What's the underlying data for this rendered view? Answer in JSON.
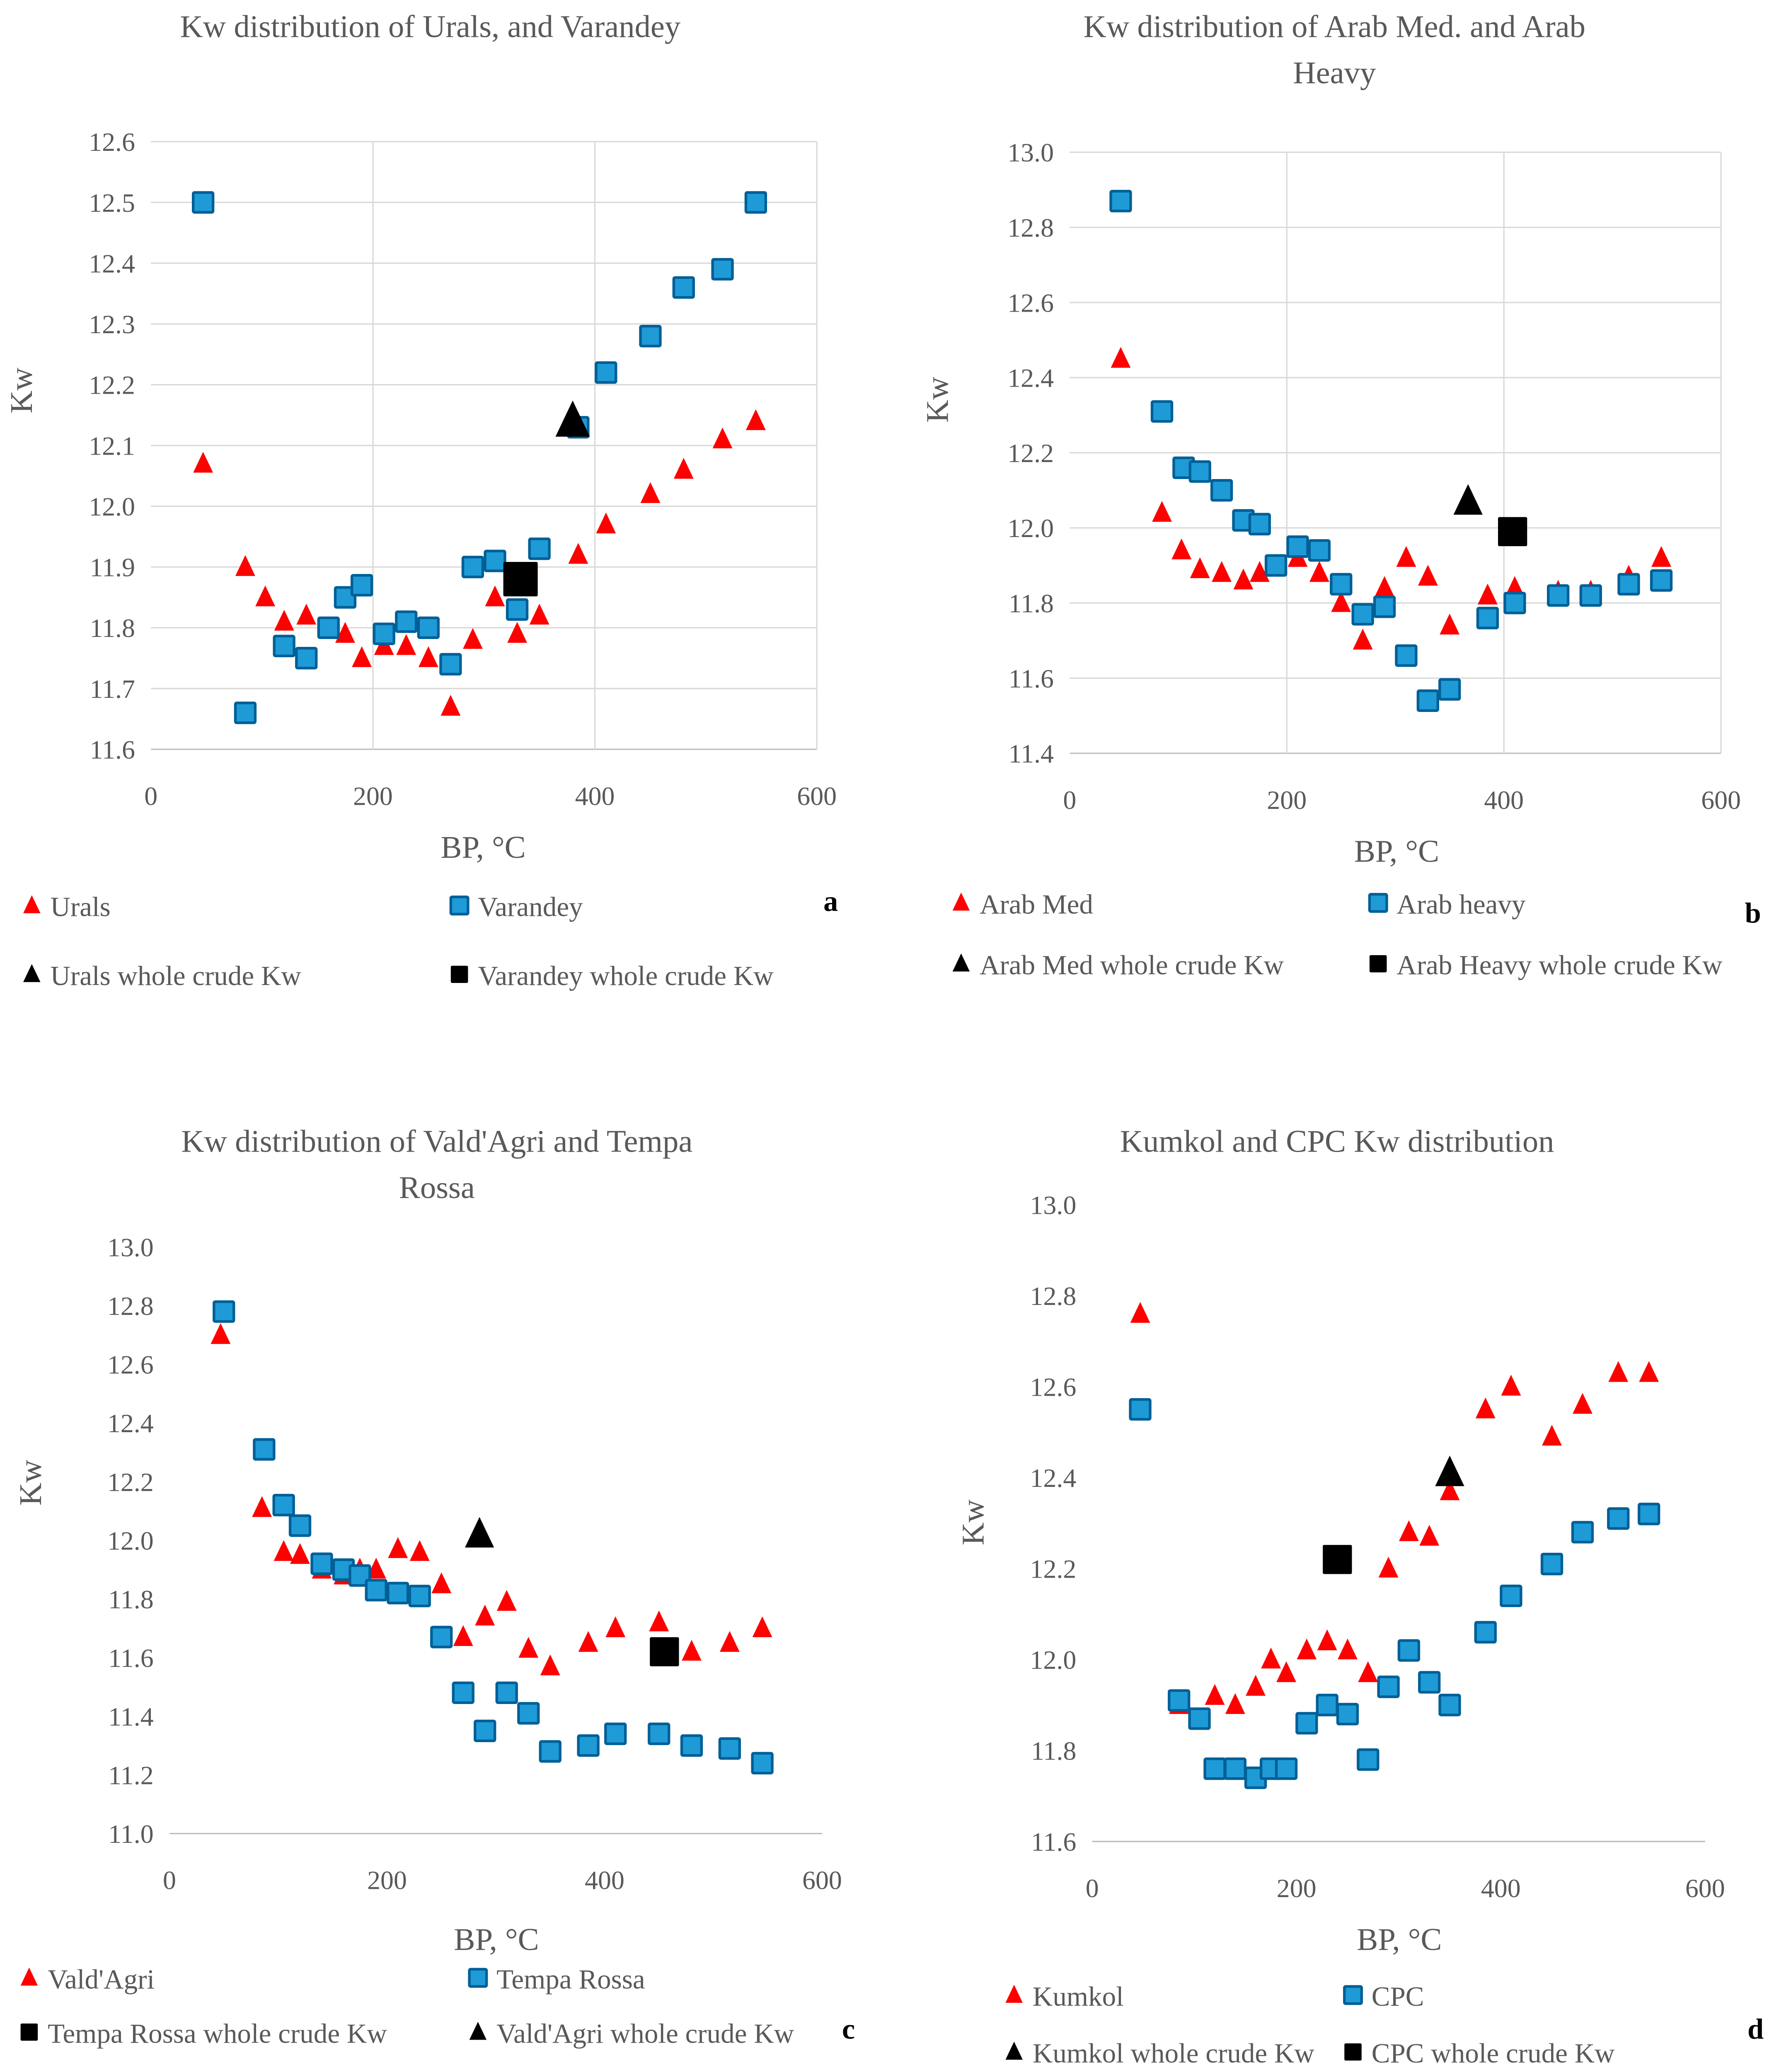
{
  "colors": {
    "triangle": "#ff0000",
    "square_fill": "#1e9bd7",
    "square_stroke": "#005f96",
    "whole": "#000000",
    "grid": "#d9d9d9"
  },
  "chart_data": [
    {
      "type": "scatter",
      "panel": "a",
      "title": [
        "Kw distribution of Urals, and Varandey"
      ],
      "xlabel": "BP, °C",
      "ylabel": "Kw",
      "xlim": [
        0,
        600
      ],
      "ylim": [
        11.6,
        12.6
      ],
      "xticks": [
        0,
        200,
        400,
        600
      ],
      "yticks": [
        "11.6",
        "11.7",
        "11.8",
        "11.9",
        "12.0",
        "12.1",
        "12.2",
        "12.3",
        "12.4",
        "12.5",
        "12.6"
      ],
      "grid": true,
      "legend_position": "bottom",
      "series": [
        {
          "name": "Urals",
          "marker": "triangle",
          "x": [
            47,
            85,
            103,
            120,
            140,
            175,
            190,
            210,
            230,
            250,
            270,
            290,
            310,
            330,
            350,
            385,
            410,
            450,
            480,
            515,
            545
          ],
          "y": [
            12.07,
            11.9,
            11.85,
            11.81,
            11.82,
            11.79,
            11.75,
            11.77,
            11.77,
            11.75,
            11.67,
            11.78,
            11.85,
            11.79,
            11.82,
            11.92,
            11.97,
            12.02,
            12.06,
            12.11,
            12.14
          ]
        },
        {
          "name": "Varandey",
          "marker": "square",
          "x": [
            47,
            85,
            120,
            140,
            160,
            175,
            190,
            210,
            230,
            250,
            270,
            290,
            310,
            330,
            350,
            385,
            410,
            450,
            480,
            515,
            545
          ],
          "y": [
            12.5,
            11.66,
            11.77,
            11.75,
            11.8,
            11.85,
            11.87,
            11.79,
            11.81,
            11.8,
            11.74,
            11.9,
            11.91,
            11.83,
            11.93,
            12.13,
            12.22,
            12.28,
            12.36,
            12.39,
            12.5
          ]
        },
        {
          "name": "Urals whole crude Kw",
          "marker": "triangle-whole",
          "x": [
            380
          ],
          "y": [
            12.14
          ]
        },
        {
          "name": "Varandey whole crude Kw",
          "marker": "square-whole",
          "x": [
            333
          ],
          "y": [
            11.88
          ]
        }
      ]
    },
    {
      "type": "scatter",
      "panel": "b",
      "title": [
        "Kw distribution of Arab Med. and Arab",
        "Heavy"
      ],
      "xlabel": "BP, °C",
      "ylabel": "Kw",
      "xlim": [
        0,
        600
      ],
      "ylim": [
        11.4,
        13.0
      ],
      "xticks": [
        0,
        200,
        400,
        600
      ],
      "yticks": [
        "11.4",
        "11.6",
        "11.8",
        "12.0",
        "12.2",
        "12.4",
        "12.6",
        "12.8",
        "13.0"
      ],
      "grid": true,
      "legend_position": "bottom",
      "series": [
        {
          "name": "Arab Med",
          "marker": "triangle",
          "x": [
            47,
            85,
            103,
            120,
            140,
            160,
            175,
            190,
            210,
            230,
            250,
            270,
            290,
            310,
            330,
            350,
            385,
            410,
            450,
            480,
            515,
            545
          ],
          "y": [
            12.45,
            12.04,
            11.94,
            11.89,
            11.88,
            11.86,
            11.88,
            11.9,
            11.92,
            11.88,
            11.8,
            11.7,
            11.84,
            11.92,
            11.87,
            11.74,
            11.82,
            11.84,
            11.83,
            11.83,
            11.87,
            11.92
          ]
        },
        {
          "name": "Arab heavy",
          "marker": "square",
          "x": [
            47,
            85,
            105,
            120,
            140,
            160,
            175,
            190,
            210,
            230,
            250,
            270,
            290,
            310,
            330,
            350,
            385,
            410,
            450,
            480,
            515,
            545
          ],
          "y": [
            12.87,
            12.31,
            12.16,
            12.15,
            12.1,
            12.02,
            12.01,
            11.9,
            11.95,
            11.94,
            11.85,
            11.77,
            11.79,
            11.66,
            11.54,
            11.57,
            11.76,
            11.8,
            11.82,
            11.82,
            11.85,
            11.86
          ]
        },
        {
          "name": "Arab Med whole crude Kw",
          "marker": "triangle-whole",
          "x": [
            367
          ],
          "y": [
            12.07
          ]
        },
        {
          "name": "Arab Heavy whole crude Kw",
          "marker": "square-whole",
          "x": [
            408
          ],
          "y": [
            11.99
          ]
        }
      ]
    },
    {
      "type": "scatter",
      "panel": "c",
      "title": [
        "Kw distribution of Vald'Agri and Tempa",
        "Rossa"
      ],
      "xlabel": "BP, °C",
      "ylabel": "Kw",
      "xlim": [
        0,
        600
      ],
      "ylim": [
        11.0,
        13.0
      ],
      "xticks": [
        0,
        200,
        400,
        600
      ],
      "yticks": [
        "11.0",
        "11.2",
        "11.4",
        "11.6",
        "11.8",
        "12.0",
        "12.2",
        "12.4",
        "12.6",
        "12.8",
        "13.0"
      ],
      "grid": false,
      "legend_position": "bottom",
      "series": [
        {
          "name": "Vald'Agri",
          "marker": "triangle",
          "x": [
            47,
            85,
            105,
            120,
            140,
            160,
            175,
            190,
            210,
            230,
            250,
            270,
            290,
            310,
            330,
            350,
            385,
            410,
            450,
            480,
            515,
            545
          ],
          "y": [
            12.7,
            12.11,
            11.96,
            11.95,
            11.9,
            11.88,
            11.9,
            11.9,
            11.97,
            11.96,
            11.85,
            11.67,
            11.74,
            11.79,
            11.63,
            11.57,
            11.65,
            11.7,
            11.72,
            11.62,
            11.65,
            11.7
          ]
        },
        {
          "name": "Tempa Rossa",
          "marker": "square",
          "x": [
            50,
            87,
            105,
            120,
            140,
            160,
            175,
            190,
            210,
            230,
            250,
            270,
            290,
            310,
            330,
            350,
            385,
            410,
            450,
            480,
            515,
            545
          ],
          "y": [
            12.78,
            12.31,
            12.12,
            12.05,
            11.92,
            11.9,
            11.88,
            11.83,
            11.82,
            11.81,
            11.67,
            11.48,
            11.35,
            11.48,
            11.41,
            11.28,
            11.3,
            11.34,
            11.34,
            11.3,
            11.29,
            11.24
          ]
        },
        {
          "name": "Tempa Rossa whole crude Kw",
          "marker": "square-whole",
          "x": [
            455
          ],
          "y": [
            11.62
          ]
        },
        {
          "name": "Vald'Agri whole crude Kw",
          "marker": "triangle-whole",
          "x": [
            285
          ],
          "y": [
            12.02
          ]
        }
      ]
    },
    {
      "type": "scatter",
      "panel": "d",
      "title": [
        "Kumkol and CPC Kw distribution"
      ],
      "xlabel": "BP, °C",
      "ylabel": "Kw",
      "xlim": [
        0,
        600
      ],
      "ylim": [
        11.6,
        13.0
      ],
      "xticks": [
        0,
        200,
        400,
        600
      ],
      "yticks": [
        "11.6",
        "11.8",
        "12.0",
        "12.2",
        "12.4",
        "12.6",
        "12.8",
        "13.0"
      ],
      "grid": false,
      "legend_position": "bottom",
      "series": [
        {
          "name": "Kumkol",
          "marker": "triangle",
          "x": [
            47,
            85,
            120,
            140,
            160,
            175,
            190,
            210,
            230,
            250,
            270,
            290,
            310,
            330,
            350,
            385,
            410,
            450,
            480,
            515,
            545
          ],
          "y": [
            12.76,
            11.9,
            11.92,
            11.9,
            11.94,
            12.0,
            11.97,
            12.02,
            12.04,
            12.02,
            11.97,
            12.2,
            12.28,
            12.27,
            12.37,
            12.55,
            12.6,
            12.49,
            12.56,
            12.63,
            12.63
          ]
        },
        {
          "name": "CPC",
          "marker": "square",
          "x": [
            47,
            85,
            105,
            120,
            140,
            160,
            175,
            190,
            210,
            230,
            250,
            270,
            290,
            310,
            330,
            350,
            385,
            410,
            450,
            480,
            515,
            545
          ],
          "y": [
            12.55,
            11.91,
            11.87,
            11.76,
            11.76,
            11.74,
            11.76,
            11.76,
            11.86,
            11.9,
            11.88,
            11.78,
            11.94,
            12.02,
            11.95,
            11.9,
            12.06,
            12.14,
            12.21,
            12.28,
            12.31,
            12.32
          ]
        },
        {
          "name": "Kumkol whole crude Kw",
          "marker": "triangle-whole",
          "x": [
            350
          ],
          "y": [
            12.41
          ]
        },
        {
          "name": "CPC whole crude Kw",
          "marker": "square-whole",
          "x": [
            240
          ],
          "y": [
            12.22
          ]
        }
      ]
    }
  ]
}
